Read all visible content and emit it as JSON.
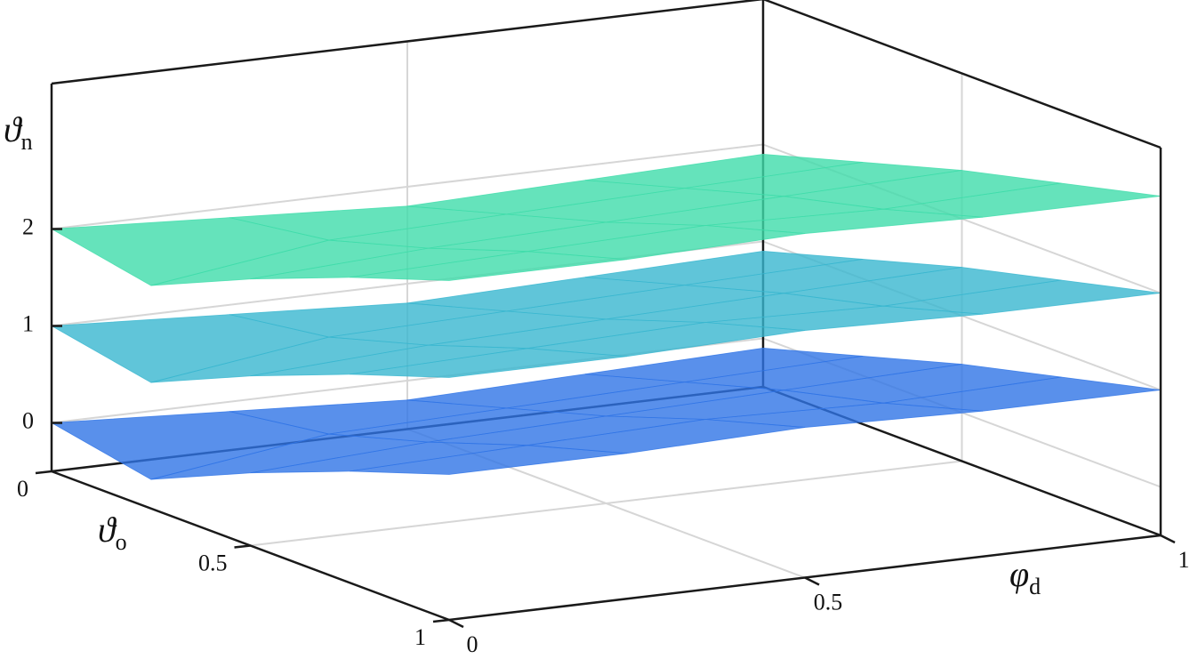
{
  "chart_data": {
    "type": "surface",
    "xlabel": {
      "text": "φ",
      "sub": "d"
    },
    "ylabel": {
      "text": "ϑ",
      "sub": "o"
    },
    "zlabel": {
      "text": "ϑ",
      "sub": "n"
    },
    "x": [
      0,
      0.25,
      0.5,
      0.75,
      1
    ],
    "y": [
      0,
      0.25,
      0.5,
      0.75,
      1
    ],
    "xlim": [
      0,
      1
    ],
    "ylim": [
      0,
      1
    ],
    "zlim": [
      -0.5,
      3.5
    ],
    "xticks": [
      0,
      0.5,
      1
    ],
    "yticks": [
      0,
      0.5,
      1
    ],
    "zticks": [
      0,
      1,
      2
    ],
    "grid": true,
    "series": [
      {
        "color": "#2f74e6",
        "values": [
          [
            0,
            -0.1,
            -0.2,
            -0.15,
            -0.1
          ],
          [
            -0.2,
            0.05,
            0.1,
            0.15,
            0.2
          ],
          [
            0.25,
            0.35,
            0.4,
            0.45,
            0.5
          ],
          [
            0.65,
            0.7,
            0.75,
            0.7,
            0.75
          ],
          [
            1.0,
            1.0,
            1.05,
            1.0,
            1.0
          ]
        ]
      },
      {
        "color": "#38b6d0",
        "values": [
          [
            1,
            0.9,
            0.8,
            0.85,
            0.9
          ],
          [
            0.8,
            1.05,
            1.1,
            1.15,
            1.2
          ],
          [
            1.25,
            1.35,
            1.4,
            1.45,
            1.5
          ],
          [
            1.65,
            1.7,
            1.75,
            1.7,
            1.75
          ],
          [
            2.0,
            2.0,
            2.05,
            2.0,
            2.0
          ]
        ]
      },
      {
        "color": "#3fdcaa",
        "values": [
          [
            2,
            1.9,
            1.8,
            1.85,
            1.9
          ],
          [
            1.8,
            2.05,
            2.1,
            2.15,
            2.2
          ],
          [
            2.25,
            2.35,
            2.4,
            2.45,
            2.5
          ],
          [
            2.65,
            2.7,
            2.75,
            2.7,
            2.75
          ],
          [
            3.0,
            3.0,
            3.05,
            3.0,
            3.0
          ]
        ]
      }
    ]
  }
}
